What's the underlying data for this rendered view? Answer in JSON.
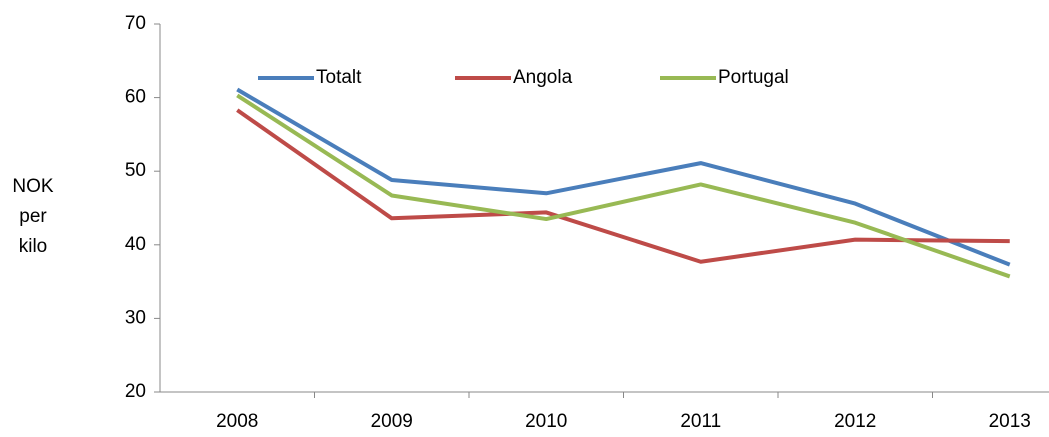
{
  "chart_data": {
    "type": "line",
    "y_label": "NOK per kilo",
    "categories": [
      "2008",
      "2009",
      "2010",
      "2011",
      "2012",
      "2013"
    ],
    "series": [
      {
        "name": "Totalt",
        "color": "#4a7ebb",
        "values": [
          61.1,
          48.8,
          47.0,
          51.1,
          45.6,
          37.3
        ]
      },
      {
        "name": "Angola",
        "color": "#be4b48",
        "values": [
          58.3,
          43.6,
          44.4,
          37.7,
          40.7,
          40.5
        ]
      },
      {
        "name": "Portugal",
        "color": "#98b954",
        "values": [
          60.3,
          46.7,
          43.5,
          48.2,
          43.0,
          35.7
        ]
      }
    ],
    "ylim": [
      20,
      70
    ],
    "yticks": [
      20,
      30,
      40,
      50,
      60,
      70
    ],
    "grid": false,
    "legend": "top"
  }
}
